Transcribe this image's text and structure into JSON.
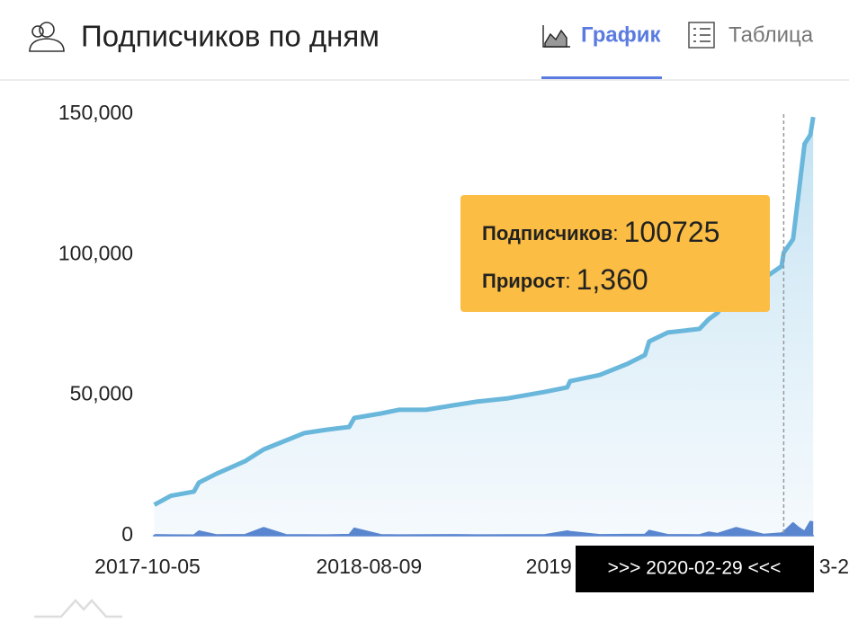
{
  "header": {
    "title": "Подписчиков по дням",
    "tabs": [
      "График",
      "Таблица"
    ],
    "active_tab": 0
  },
  "chart_data": {
    "type": "line",
    "x": [
      "2017-10-07",
      "2017-10-30",
      "2017-12-01",
      "2017-12-08",
      "2018-01-01",
      "2018-02-10",
      "2018-03-08",
      "2018-04-08",
      "2018-05-03",
      "2018-06-03",
      "2018-07-05",
      "2018-07-12",
      "2018-08-18",
      "2018-09-12",
      "2018-10-20",
      "2018-11-27",
      "2018-12-29",
      "2019-02-11",
      "2019-04-03",
      "2019-05-04",
      "2019-05-08",
      "2019-06-18",
      "2019-07-26",
      "2019-08-20",
      "2019-08-26",
      "2019-09-21",
      "2019-11-04",
      "2019-11-17",
      "2019-11-29",
      "2019-12-25",
      "2020-02-01",
      "2020-02-26",
      "2020-02-29",
      "2020-03-13",
      "2020-03-20",
      "2020-03-29",
      "2020-04-06",
      "2020-04-10"
    ],
    "series": [
      {
        "name": "Подписчиков",
        "color": "#6ab7dc",
        "values": [
          11000,
          14200,
          15700,
          18900,
          22000,
          26500,
          30700,
          33900,
          36500,
          37700,
          38700,
          41900,
          43500,
          44800,
          44800,
          46400,
          47700,
          48900,
          51200,
          52800,
          55000,
          57200,
          61100,
          64300,
          69100,
          72300,
          73600,
          77100,
          79300,
          88900,
          91500,
          95900,
          100725,
          105500,
          120200,
          139400,
          142600,
          149000
        ]
      },
      {
        "name": "Прирост",
        "color": "#5a86cf",
        "values": [
          300,
          200,
          150,
          1600,
          250,
          300,
          2800,
          300,
          250,
          200,
          350,
          2600,
          300,
          200,
          250,
          300,
          200,
          250,
          300,
          1600,
          1400,
          300,
          350,
          400,
          1800,
          300,
          250,
          1200,
          700,
          2800,
          400,
          900,
          1360,
          4500,
          3000,
          1500,
          5000,
          4800
        ]
      }
    ],
    "xlim": [
      "2017-10-05",
      "2020-04-11"
    ],
    "xticks": [
      {
        "value": "2017-10-05",
        "label": "2017-10-05"
      },
      {
        "value": "2018-08-09",
        "label": "2018-08-09"
      },
      {
        "value": "2019-06-13",
        "label": "2019"
      },
      {
        "value": "2020-04-17",
        "label": "3-2"
      }
    ],
    "ylim": [
      0,
      150000
    ],
    "yticks": [
      0,
      {
        "value": 50000,
        "label": "50,000"
      },
      {
        "value": 100000,
        "label": "100,000"
      },
      {
        "value": 150000,
        "label": "150,000"
      }
    ],
    "tooltip": {
      "x_label": ">>> 2020-02-29 <<<",
      "x": "2020-02-29",
      "items": [
        {
          "name": "Подписчиков",
          "value": 100725
        },
        {
          "name": "Прирост",
          "value": 1360,
          "value_label": "1,360"
        }
      ]
    }
  }
}
